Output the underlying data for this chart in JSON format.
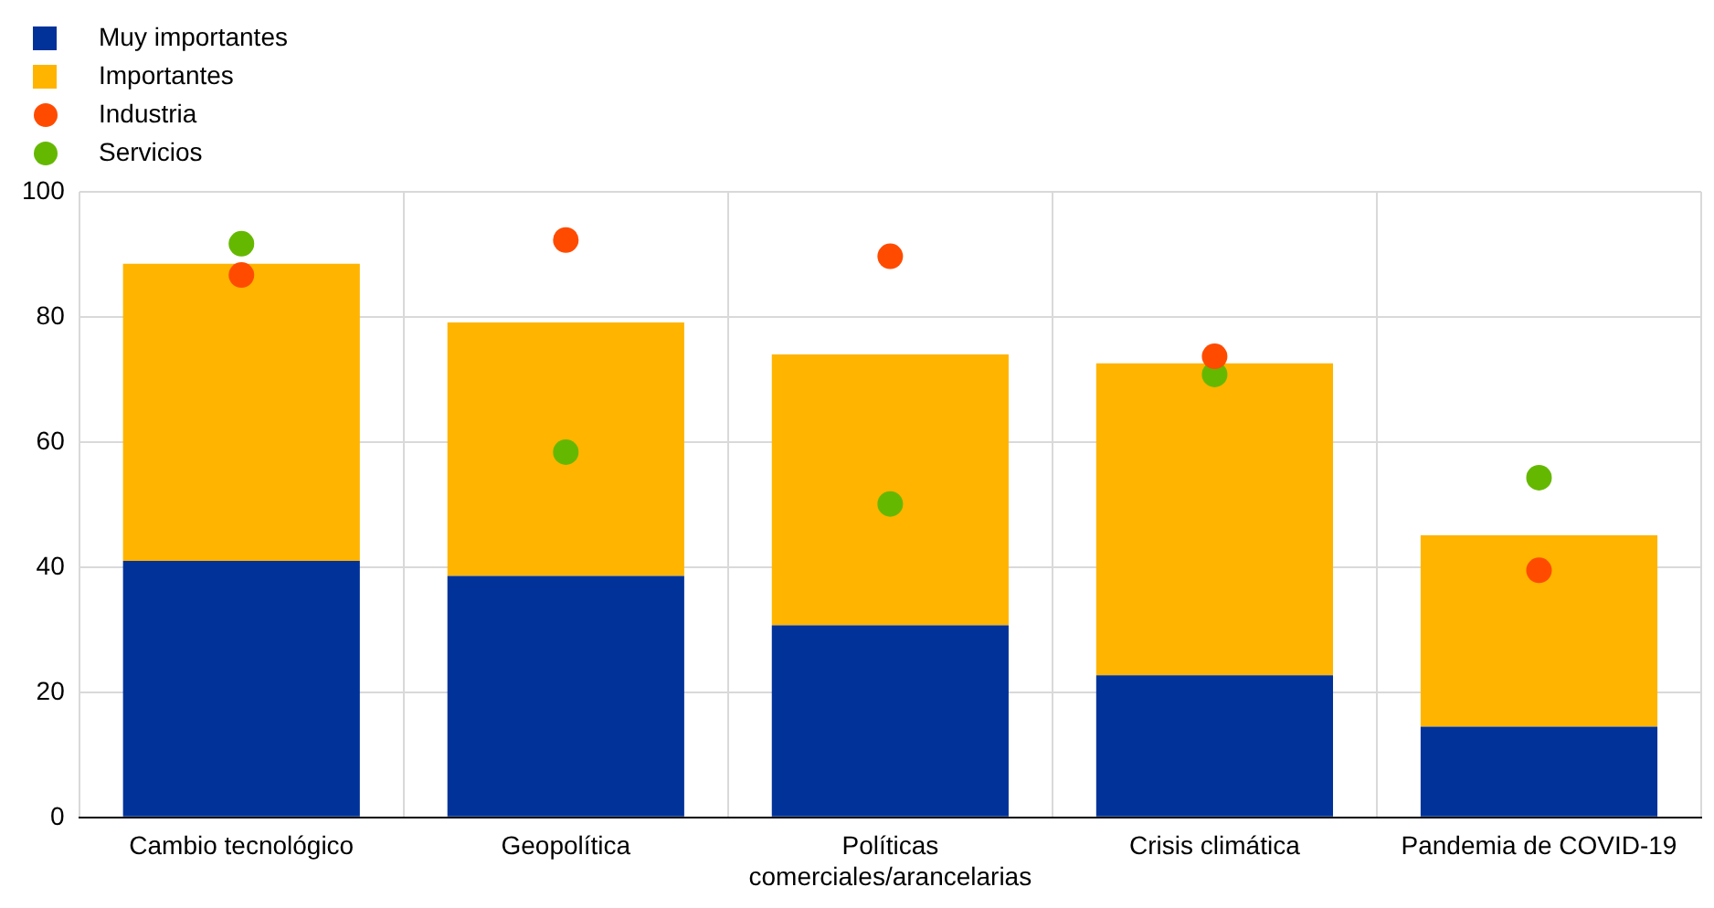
{
  "chart_data": {
    "type": "bar",
    "stacked": true,
    "categories": [
      "Cambio tecnológico",
      "Geopolítica",
      "Políticas comerciales/arancelarias",
      "Crisis climática",
      "Pandemia de COVID-19"
    ],
    "series": [
      {
        "name": "Muy importantes",
        "color": "#003299",
        "values": [
          41.0,
          38.6,
          30.7,
          22.7,
          14.5
        ]
      },
      {
        "name": "Importantes",
        "color": "#ffb400",
        "values": [
          47.5,
          40.5,
          43.3,
          49.9,
          30.6
        ]
      },
      {
        "name": "Industria",
        "type": "scatter",
        "color": "#ff4b00",
        "x": [
          "Cambio tecnológico",
          "Geopolítica",
          "Políticas comerciales/arancelarias",
          "Crisis climática",
          "Pandemia de COVID-19"
        ],
        "values": [
          86.7,
          92.3,
          89.7,
          73.7,
          39.5
        ]
      },
      {
        "name": "Servicios",
        "type": "scatter",
        "color": "#65b800",
        "x": [
          "Cambio tecnológico",
          "Geopolítica",
          "Políticas comerciales/arancelarias",
          "Crisis climática",
          "Pandemia de COVID-19"
        ],
        "values": [
          91.7,
          58.4,
          50.1,
          70.8,
          54.3
        ]
      }
    ],
    "ylim": [
      0,
      100
    ],
    "yticks": [
      0,
      20,
      40,
      60,
      80,
      100
    ],
    "grid": true,
    "legend": "top left",
    "marker": "circle"
  }
}
